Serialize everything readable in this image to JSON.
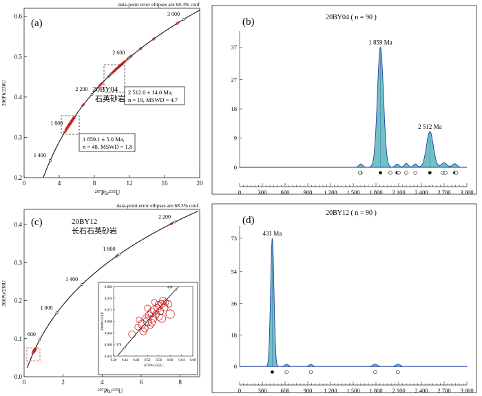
{
  "chart_data": [
    {
      "panel": "a",
      "type": "scatter",
      "panel_label": "(a)",
      "note": "data-point error ellipses are 68.3% conf",
      "sample": "20BY04",
      "lithology": "石英砂岩",
      "xlabel_pre": "207",
      "xlabel_main": "Pb/",
      "xlabel_sup2": "235",
      "xlabel_end": "U",
      "ylabel": "206Pb/238U",
      "xlim": [
        0,
        20
      ],
      "ylim": [
        0.2,
        0.62
      ],
      "x_ticks": [
        0,
        4,
        8,
        12,
        16,
        20
      ],
      "y_ticks": [
        0.2,
        0.3,
        0.4,
        0.5,
        0.6
      ],
      "concordia_ages": [
        {
          "age": 1400,
          "label": "1 400"
        },
        {
          "age": 1800,
          "label": "1 800"
        },
        {
          "age": 2200,
          "label": "2 200"
        },
        {
          "age": 2600,
          "label": "2 600"
        },
        {
          "age": 3000,
          "label": "3 000"
        }
      ],
      "concordia_range": [
        1100,
        3450
      ],
      "point_groups": [
        {
          "ages": [
            1800,
            1820,
            1835,
            1845,
            1850,
            1855,
            1858,
            1860,
            1862,
            1865,
            1870,
            1875,
            1880,
            1885,
            1890,
            1900,
            1910,
            1920,
            1930,
            1760,
            1790,
            1815,
            1840,
            1870
          ]
        },
        {
          "ages": [
            2080,
            2300,
            2320,
            2400,
            2430,
            2450,
            2460,
            2470,
            2480,
            2490,
            2500,
            2505,
            2510,
            2515,
            2520,
            2525,
            2530,
            2540,
            2550,
            2560,
            2590,
            2620,
            2700,
            2800,
            2960
          ]
        }
      ],
      "annotations": [
        {
          "lines": [
            "2 512.0 ± 14.0 Ma,",
            "n = 19, MSWD = 4.7"
          ]
        },
        {
          "lines": [
            "1 859.1 ± 5.0 Ma,",
            "n = 48, MSWD = 1.8"
          ]
        }
      ],
      "colors": {
        "ellipse": "#cc2222",
        "curve": "#111111"
      }
    },
    {
      "panel": "b",
      "type": "area",
      "panel_label": "(b)",
      "title": "20BY04 ( n = 90 )",
      "xlim": [
        0,
        3000
      ],
      "ylim": [
        -3,
        42
      ],
      "x_ticks": [
        0,
        300,
        600,
        900,
        1200,
        1500,
        1800,
        2100,
        2400,
        2700,
        3000
      ],
      "x_tick_labels": [
        "0",
        "300",
        "600",
        "900",
        "1 200",
        "1 500",
        "1 800",
        "2 100",
        "2 400",
        "2 700",
        "3 000"
      ],
      "y_ticks": [
        0,
        9,
        18,
        27,
        37
      ],
      "peaks": [
        {
          "age": 1859,
          "label": "1 859 Ma",
          "height": 37
        },
        {
          "age": 2512,
          "label": "2 512 Ma",
          "height": 11
        }
      ],
      "kde_components": [
        {
          "center": 1859,
          "height": 37,
          "sigma": 40
        },
        {
          "center": 2512,
          "height": 11,
          "sigma": 45
        },
        {
          "center": 1600,
          "height": 1.0,
          "sigma": 25
        },
        {
          "center": 2080,
          "height": 1.0,
          "sigma": 25
        },
        {
          "center": 2200,
          "height": 1.2,
          "sigma": 25
        },
        {
          "center": 2320,
          "height": 1.0,
          "sigma": 25
        },
        {
          "center": 2700,
          "height": 1.4,
          "sigma": 35
        },
        {
          "center": 2840,
          "height": 1.1,
          "sigma": 30
        }
      ],
      "circle_ages": [
        1590,
        1990,
        2100,
        2200,
        2320,
        2680,
        2720,
        2860
      ],
      "colors": {
        "fill": "#6fc1c6",
        "line": "#1e3f9e"
      }
    },
    {
      "panel": "c",
      "type": "scatter",
      "panel_label": "(c)",
      "note": "data-point error ellipses are 68.3% conf.",
      "sample": "20BY12",
      "lithology": "长石石英砂岩",
      "xlabel_pre": "207",
      "xlabel_main": "Pb/",
      "xlabel_sup2": "235",
      "xlabel_end": "U",
      "ylabel": "206Pb/238U",
      "xlim": [
        0,
        9
      ],
      "ylim": [
        0,
        0.44
      ],
      "x_ticks": [
        0,
        2,
        4,
        6,
        8
      ],
      "y_ticks": [
        0,
        0.1,
        0.2,
        0.3,
        0.4
      ],
      "concordia_ages": [
        {
          "age": 600,
          "label": "600"
        },
        {
          "age": 1000,
          "label": "1 000"
        },
        {
          "age": 1400,
          "label": "1 400"
        },
        {
          "age": 1800,
          "label": "1 800"
        },
        {
          "age": 2200,
          "label": "2 200"
        }
      ],
      "concordia_range": [
        150,
        2550
      ],
      "point_groups": [
        {
          "ages": [
            1780,
            2180
          ]
        },
        {
          "ages": [
            400,
            410,
            420,
            425,
            430,
            431,
            435,
            440,
            445,
            450
          ]
        }
      ],
      "inset": {
        "xlim": [
          0.4,
          0.68
        ],
        "ylim": [
          0.056,
          0.08
        ],
        "x_ticks": [
          0.4,
          0.44,
          0.48,
          0.52,
          0.56,
          0.6,
          0.64,
          0.68
        ],
        "y_ticks": [
          0.056,
          0.06,
          0.064,
          0.068,
          0.072,
          0.076,
          0.08
        ],
        "concordia_ages": [
          {
            "age": 370,
            "label": "370"
          },
          {
            "age": 490,
            "label": "490"
          }
        ],
        "ellipses": [
          {
            "x": 0.465,
            "y": 0.0635,
            "rx": 0.012,
            "ry": 0.0012
          },
          {
            "x": 0.485,
            "y": 0.066,
            "rx": 0.01,
            "ry": 0.001
          },
          {
            "x": 0.5,
            "y": 0.067,
            "rx": 0.014,
            "ry": 0.0014
          },
          {
            "x": 0.51,
            "y": 0.0655,
            "rx": 0.012,
            "ry": 0.0012
          },
          {
            "x": 0.515,
            "y": 0.069,
            "rx": 0.012,
            "ry": 0.0013
          },
          {
            "x": 0.52,
            "y": 0.068,
            "rx": 0.015,
            "ry": 0.0015
          },
          {
            "x": 0.525,
            "y": 0.07,
            "rx": 0.013,
            "ry": 0.0013
          },
          {
            "x": 0.53,
            "y": 0.0665,
            "rx": 0.01,
            "ry": 0.001
          },
          {
            "x": 0.535,
            "y": 0.071,
            "rx": 0.014,
            "ry": 0.0014
          },
          {
            "x": 0.54,
            "y": 0.069,
            "rx": 0.013,
            "ry": 0.0013
          },
          {
            "x": 0.545,
            "y": 0.072,
            "rx": 0.014,
            "ry": 0.0014
          },
          {
            "x": 0.55,
            "y": 0.0705,
            "rx": 0.012,
            "ry": 0.0012
          },
          {
            "x": 0.555,
            "y": 0.0725,
            "rx": 0.012,
            "ry": 0.0013
          },
          {
            "x": 0.56,
            "y": 0.0735,
            "rx": 0.013,
            "ry": 0.0014
          },
          {
            "x": 0.565,
            "y": 0.0715,
            "rx": 0.012,
            "ry": 0.0012
          },
          {
            "x": 0.57,
            "y": 0.074,
            "rx": 0.011,
            "ry": 0.0012
          },
          {
            "x": 0.575,
            "y": 0.075,
            "rx": 0.013,
            "ry": 0.0013
          },
          {
            "x": 0.58,
            "y": 0.0728,
            "rx": 0.012,
            "ry": 0.0013
          },
          {
            "x": 0.585,
            "y": 0.0745,
            "rx": 0.01,
            "ry": 0.001
          },
          {
            "x": 0.6,
            "y": 0.0705,
            "rx": 0.015,
            "ry": 0.0015
          },
          {
            "x": 0.505,
            "y": 0.0645,
            "rx": 0.012,
            "ry": 0.0012
          },
          {
            "x": 0.535,
            "y": 0.0675,
            "rx": 0.012,
            "ry": 0.0012
          },
          {
            "x": 0.57,
            "y": 0.069,
            "rx": 0.014,
            "ry": 0.0014
          },
          {
            "x": 0.49,
            "y": 0.0685,
            "rx": 0.01,
            "ry": 0.001
          },
          {
            "x": 0.545,
            "y": 0.0745,
            "rx": 0.01,
            "ry": 0.0011
          },
          {
            "x": 0.52,
            "y": 0.0725,
            "rx": 0.011,
            "ry": 0.0011
          },
          {
            "x": 0.56,
            "y": 0.0695,
            "rx": 0.012,
            "ry": 0.0012
          },
          {
            "x": 0.595,
            "y": 0.074,
            "rx": 0.011,
            "ry": 0.0012
          }
        ]
      },
      "colors": {
        "ellipse": "#cc2222",
        "curve": "#111111"
      }
    },
    {
      "panel": "d",
      "type": "area",
      "panel_label": "(d)",
      "title": "20BY12 ( n = 90 )",
      "xlim": [
        0,
        3000
      ],
      "ylim": [
        -5,
        80
      ],
      "x_ticks": [
        0,
        300,
        600,
        900,
        1200,
        1500,
        1800,
        2100,
        2400,
        2700,
        3000
      ],
      "x_tick_labels": [
        "0",
        "300",
        "600",
        "900",
        "1 200",
        "1 500",
        "1 800",
        "2 100",
        "2 400",
        "2 700",
        "3 000"
      ],
      "y_ticks": [
        0,
        18,
        36,
        54,
        73
      ],
      "peaks": [
        {
          "age": 431,
          "label": "431 Ma",
          "height": 73
        }
      ],
      "kde_components": [
        {
          "center": 431,
          "height": 73,
          "sigma": 22
        },
        {
          "center": 620,
          "height": 1.2,
          "sigma": 25
        },
        {
          "center": 940,
          "height": 1.2,
          "sigma": 25
        },
        {
          "center": 1790,
          "height": 1.3,
          "sigma": 30
        },
        {
          "center": 2090,
          "height": 1.3,
          "sigma": 30
        }
      ],
      "circle_ages": [
        620,
        940,
        1790,
        2090
      ],
      "colors": {
        "fill": "#6fc1c6",
        "line": "#1e3f9e"
      }
    }
  ]
}
